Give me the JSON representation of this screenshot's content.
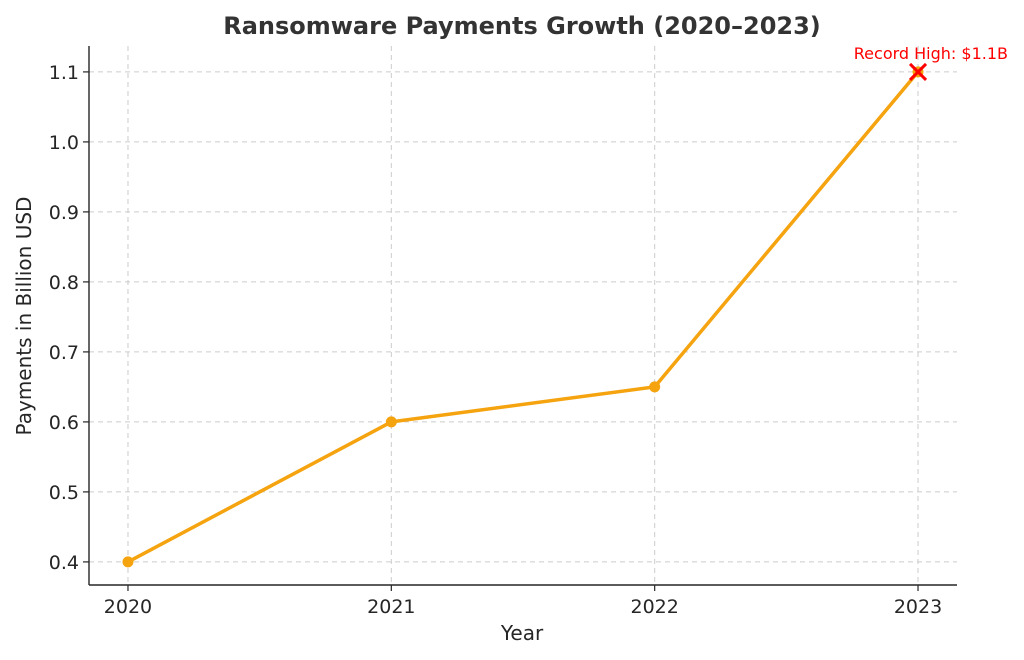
{
  "chart_data": {
    "type": "line",
    "title": "Ransomware Payments Growth (2020–2023)",
    "xlabel": "Year",
    "ylabel": "Payments in Billion USD",
    "categories": [
      "2020",
      "2021",
      "2022",
      "2023"
    ],
    "x": [
      2020,
      2021,
      2022,
      2023
    ],
    "series": [
      {
        "values": [
          0.4,
          0.6,
          0.65,
          1.1
        ],
        "color": "#f5a30f",
        "marker": "circle"
      }
    ],
    "yticks": [
      "0.4",
      "0.5",
      "0.6",
      "0.7",
      "0.8",
      "0.9",
      "1.0",
      "1.1"
    ],
    "ylim": [
      0.367,
      1.137
    ],
    "grid": true,
    "annotation": {
      "text": "Record High: $1.1B",
      "x": 2023,
      "y": 1.1,
      "marker": "x",
      "color": "#ff0000"
    }
  }
}
